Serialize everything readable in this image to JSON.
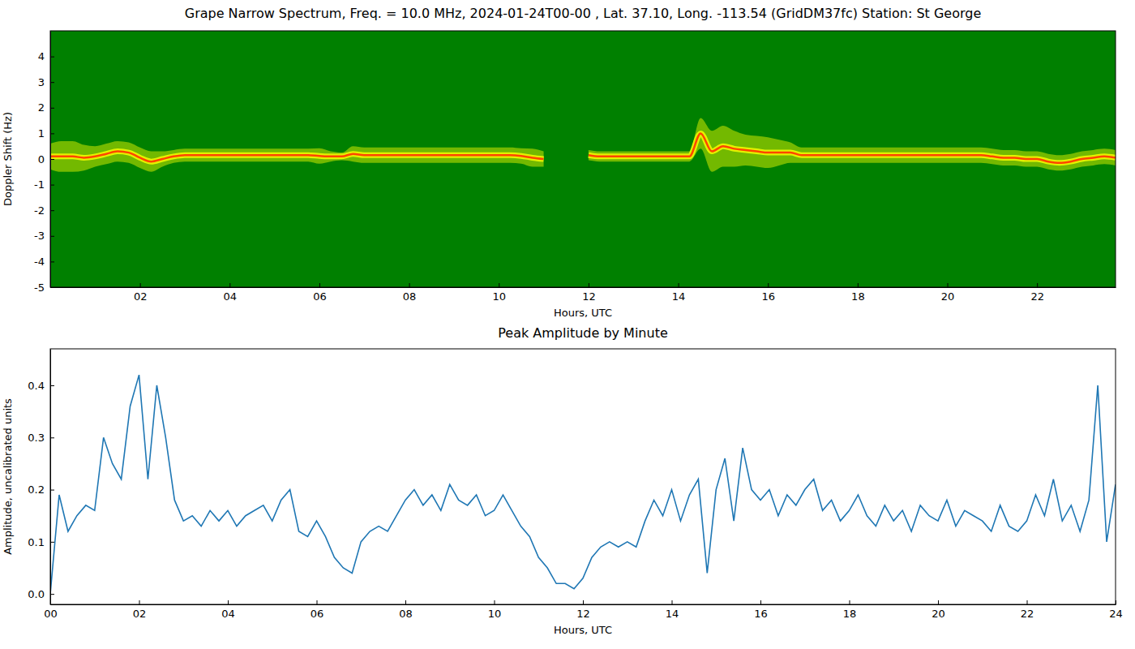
{
  "chart_data": [
    {
      "type": "spectrogram",
      "title": "Grape Narrow Spectrum, Freq. = 10.0 MHz, 2024-01-24T00-00 , Lat.  37.10, Long. -113.54 (GridDM37fc) Station: St George",
      "x_label": "Hours, UTC",
      "y_label": "Doppler Shift (Hz)",
      "color": "#008000",
      "grid": false,
      "xlim": [
        0,
        23.75
      ],
      "ylim": [
        -5,
        5
      ],
      "xticks": [
        {
          "value": 2,
          "label": "02"
        },
        {
          "value": 4,
          "label": "04"
        },
        {
          "value": 6,
          "label": "06"
        },
        {
          "value": 8,
          "label": "08"
        },
        10,
        12,
        14,
        16,
        18,
        20,
        22
      ],
      "yticks": [
        -5,
        -4,
        -3,
        -2,
        -1,
        0,
        1,
        2,
        3,
        4
      ],
      "x": [
        0,
        0.25,
        0.5,
        0.75,
        1,
        1.25,
        1.5,
        1.75,
        2,
        2.25,
        2.5,
        2.75,
        3,
        3.25,
        3.5,
        3.75,
        4,
        4.25,
        4.5,
        4.75,
        5,
        5.25,
        5.5,
        5.75,
        6,
        6.25,
        6.5,
        6.75,
        7,
        7.25,
        7.5,
        7.75,
        8,
        8.25,
        8.5,
        8.75,
        9,
        9.25,
        9.5,
        9.75,
        10,
        10.25,
        10.5,
        10.75,
        11,
        11.25,
        11.5,
        11.75,
        12,
        12.25,
        12.5,
        12.75,
        13,
        13.25,
        13.5,
        13.75,
        14,
        14.25,
        14.5,
        14.75,
        15,
        15.25,
        15.5,
        15.75,
        16,
        16.25,
        16.5,
        16.75,
        17,
        17.25,
        17.5,
        17.75,
        18,
        18.25,
        18.5,
        18.75,
        19,
        19.25,
        19.5,
        19.75,
        20,
        20.25,
        20.5,
        20.75,
        21,
        21.25,
        21.5,
        21.75,
        22,
        22.25,
        22.5,
        22.75,
        23,
        23.25,
        23.5,
        23.75
      ],
      "series": [
        {
          "color": "#ff4500",
          "values": [
            0.1,
            0.1,
            0.1,
            0.05,
            0.1,
            0.2,
            0.3,
            0.25,
            0.05,
            -0.1,
            0.0,
            0.1,
            0.15,
            0.15,
            0.15,
            0.15,
            0.15,
            0.15,
            0.15,
            0.15,
            0.15,
            0.15,
            0.15,
            0.15,
            0.12,
            0.1,
            0.1,
            0.2,
            0.15,
            0.15,
            0.15,
            0.15,
            0.15,
            0.15,
            0.15,
            0.15,
            0.15,
            0.15,
            0.15,
            0.15,
            0.15,
            0.15,
            0.12,
            0.05,
            0.0,
            null,
            null,
            null,
            0.15,
            0.1,
            0.1,
            0.1,
            0.1,
            0.1,
            0.1,
            0.1,
            0.1,
            0.1,
            1.0,
            0.3,
            0.5,
            0.4,
            0.35,
            0.3,
            0.25,
            0.25,
            0.25,
            0.15,
            0.15,
            0.15,
            0.15,
            0.15,
            0.15,
            0.15,
            0.15,
            0.15,
            0.15,
            0.15,
            0.15,
            0.15,
            0.15,
            0.15,
            0.15,
            0.15,
            0.1,
            0.05,
            0.05,
            0.0,
            0.0,
            -0.1,
            -0.15,
            -0.1,
            0.0,
            0.05,
            0.1,
            0.05
          ],
          "spread": [
            0.5,
            0.6,
            0.6,
            0.5,
            0.4,
            0.4,
            0.4,
            0.4,
            0.4,
            0.4,
            0.3,
            0.25,
            0.25,
            0.25,
            0.25,
            0.25,
            0.25,
            0.25,
            0.25,
            0.25,
            0.25,
            0.25,
            0.25,
            0.25,
            0.3,
            0.2,
            0.15,
            0.3,
            0.3,
            0.3,
            0.3,
            0.3,
            0.3,
            0.3,
            0.3,
            0.3,
            0.3,
            0.3,
            0.3,
            0.3,
            0.3,
            0.3,
            0.3,
            0.35,
            0.3,
            null,
            null,
            null,
            0.2,
            0.2,
            0.2,
            0.2,
            0.2,
            0.2,
            0.2,
            0.2,
            0.2,
            0.2,
            0.6,
            0.8,
            0.8,
            0.7,
            0.6,
            0.6,
            0.6,
            0.5,
            0.4,
            0.3,
            0.3,
            0.3,
            0.3,
            0.3,
            0.3,
            0.3,
            0.3,
            0.3,
            0.3,
            0.3,
            0.3,
            0.3,
            0.3,
            0.3,
            0.3,
            0.3,
            0.3,
            0.3,
            0.3,
            0.3,
            0.3,
            0.3,
            0.3,
            0.3,
            0.3,
            0.3,
            0.3,
            0.3
          ]
        }
      ]
    },
    {
      "type": "line",
      "title": "Peak Amplitude by Minute",
      "x_label": "Hours, UTC",
      "y_label": "Amplitude, uncalibrated units",
      "grid": false,
      "xlim": [
        0,
        24
      ],
      "ylim": [
        -0.02,
        0.47
      ],
      "xticks": [
        {
          "value": 0,
          "label": "00"
        },
        {
          "value": 2,
          "label": "02"
        },
        {
          "value": 4,
          "label": "04"
        },
        {
          "value": 6,
          "label": "06"
        },
        {
          "value": 8,
          "label": "08"
        },
        10,
        12,
        14,
        16,
        18,
        20,
        22,
        24
      ],
      "yticks": [
        {
          "value": 0,
          "label": "0.0"
        },
        0.1,
        0.2,
        0.3,
        0.4
      ],
      "x": [
        0,
        0.2,
        0.4,
        0.6,
        0.8,
        1,
        1.2,
        1.4,
        1.6,
        1.8,
        2,
        2.2,
        2.4,
        2.6,
        2.8,
        3,
        3.2,
        3.4,
        3.6,
        3.8,
        4,
        4.2,
        4.4,
        4.6,
        4.8,
        5,
        5.2,
        5.4,
        5.6,
        5.8,
        6,
        6.2,
        6.4,
        6.6,
        6.8,
        7,
        7.2,
        7.4,
        7.6,
        7.8,
        8,
        8.2,
        8.4,
        8.6,
        8.8,
        9,
        9.2,
        9.4,
        9.6,
        9.8,
        10,
        10.2,
        10.4,
        10.6,
        10.8,
        11,
        11.2,
        11.4,
        11.6,
        11.8,
        12,
        12.2,
        12.4,
        12.6,
        12.8,
        13,
        13.2,
        13.4,
        13.6,
        13.8,
        14,
        14.2,
        14.4,
        14.6,
        14.8,
        15,
        15.2,
        15.4,
        15.6,
        15.8,
        16,
        16.2,
        16.4,
        16.6,
        16.8,
        17,
        17.2,
        17.4,
        17.6,
        17.8,
        18,
        18.2,
        18.4,
        18.6,
        18.8,
        19,
        19.2,
        19.4,
        19.6,
        19.8,
        20,
        20.2,
        20.4,
        20.6,
        20.8,
        21,
        21.2,
        21.4,
        21.6,
        21.8,
        22,
        22.2,
        22.4,
        22.6,
        22.8,
        23,
        23.2,
        23.4,
        23.6,
        23.8,
        24
      ],
      "series": [
        {
          "color": "#1f77b4",
          "values": [
            0.0,
            0.19,
            0.12,
            0.15,
            0.17,
            0.16,
            0.3,
            0.25,
            0.22,
            0.36,
            0.42,
            0.22,
            0.4,
            0.3,
            0.18,
            0.14,
            0.15,
            0.13,
            0.16,
            0.14,
            0.16,
            0.13,
            0.15,
            0.16,
            0.17,
            0.14,
            0.18,
            0.2,
            0.12,
            0.11,
            0.14,
            0.11,
            0.07,
            0.05,
            0.04,
            0.1,
            0.12,
            0.13,
            0.12,
            0.15,
            0.18,
            0.2,
            0.17,
            0.19,
            0.16,
            0.21,
            0.18,
            0.17,
            0.19,
            0.15,
            0.16,
            0.19,
            0.16,
            0.13,
            0.11,
            0.07,
            0.05,
            0.02,
            0.02,
            0.01,
            0.03,
            0.07,
            0.09,
            0.1,
            0.09,
            0.1,
            0.09,
            0.14,
            0.18,
            0.15,
            0.2,
            0.14,
            0.19,
            0.22,
            0.04,
            0.2,
            0.26,
            0.14,
            0.28,
            0.2,
            0.18,
            0.2,
            0.15,
            0.19,
            0.17,
            0.2,
            0.22,
            0.16,
            0.18,
            0.14,
            0.16,
            0.19,
            0.15,
            0.13,
            0.17,
            0.14,
            0.16,
            0.12,
            0.17,
            0.15,
            0.14,
            0.18,
            0.13,
            0.16,
            0.15,
            0.14,
            0.12,
            0.17,
            0.13,
            0.12,
            0.14,
            0.19,
            0.15,
            0.22,
            0.14,
            0.17,
            0.12,
            0.18,
            0.4,
            0.1,
            0.21
          ]
        }
      ]
    }
  ]
}
